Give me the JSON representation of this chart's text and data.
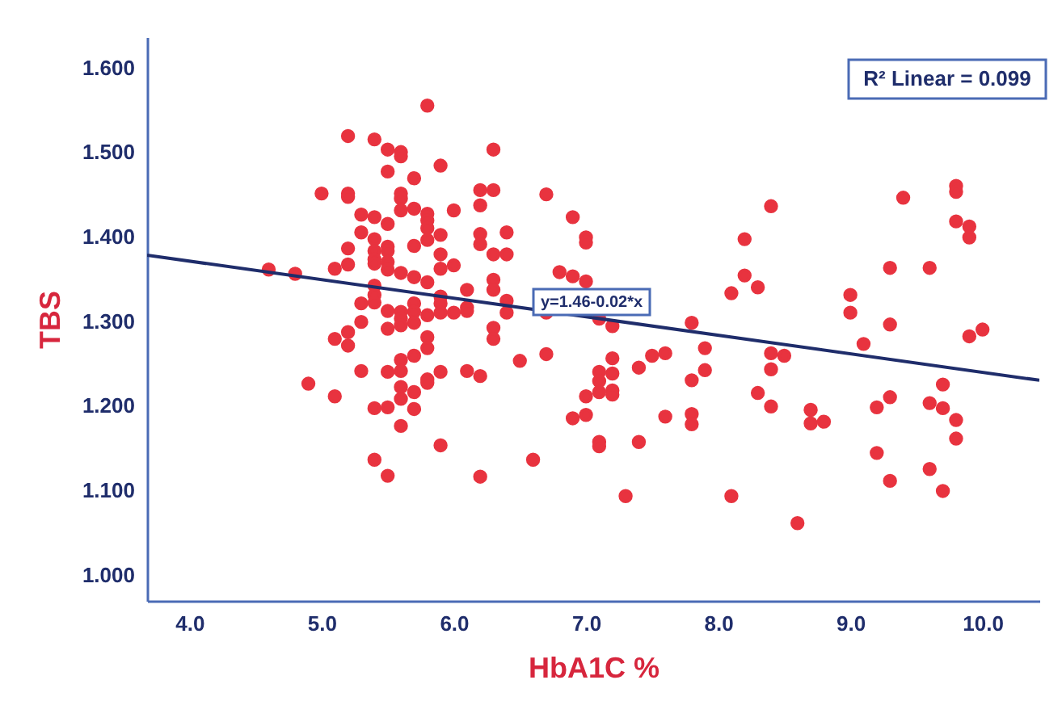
{
  "chart_data": {
    "type": "scatter",
    "xlabel": "HbA1C %",
    "ylabel": "TBS",
    "xlim": [
      3.68,
      10.43
    ],
    "ylim": [
      0.969,
      1.636
    ],
    "xticks": [
      {
        "value": 4,
        "label": "4.0"
      },
      {
        "value": 5,
        "label": "5.0"
      },
      {
        "value": 6,
        "label": "6.0"
      },
      {
        "value": 7,
        "label": "7.0"
      },
      {
        "value": 8,
        "label": "8.0"
      },
      {
        "value": 9,
        "label": "9.0"
      },
      {
        "value": 10,
        "label": "10.0"
      }
    ],
    "yticks": [
      {
        "value": 1.0,
        "label": "1.000"
      },
      {
        "value": 1.1,
        "label": "1.100"
      },
      {
        "value": 1.2,
        "label": "1.200"
      },
      {
        "value": 1.3,
        "label": "1.300"
      },
      {
        "value": 1.4,
        "label": "1.400"
      },
      {
        "value": 1.5,
        "label": "1.500"
      },
      {
        "value": 1.6,
        "label": "1.600"
      }
    ],
    "marker": "circle",
    "annotations": [
      "R² Linear = 0.099",
      "y=1.46-0.02*x"
    ],
    "series": [
      {
        "type": "scatter",
        "color": "#e8333f",
        "x": [
          5.8,
          5.2,
          5.4,
          5.5,
          5.6,
          5.6,
          6.3,
          5.9,
          5.5,
          5.7,
          5.0,
          5.2,
          5.2,
          5.6,
          5.6,
          5.6,
          5.7,
          5.8,
          5.8,
          5.8,
          5.8,
          6.0,
          6.2,
          6.2,
          6.3,
          6.7,
          5.3,
          5.3,
          5.4,
          5.4,
          5.4,
          5.4,
          5.4,
          5.5,
          5.5,
          5.5,
          5.5,
          5.5,
          5.2,
          5.2,
          5.1,
          4.6,
          4.8,
          5.7,
          5.7,
          5.6,
          5.9,
          5.9,
          5.9,
          6.0,
          6.2,
          6.2,
          6.3,
          6.3,
          6.4,
          6.4,
          5.8,
          5.4,
          5.4,
          5.4,
          5.3,
          5.7,
          5.7,
          5.7,
          5.6,
          5.6,
          5.6,
          5.5,
          5.5,
          5.3,
          5.9,
          5.9,
          5.9,
          6.1,
          6.1,
          6.1,
          6.0,
          6.3,
          6.4,
          6.4,
          5.8,
          5.2,
          5.2,
          5.1,
          5.8,
          5.8,
          6.3,
          6.3,
          5.6,
          5.7,
          6.5,
          6.7,
          5.3,
          5.5,
          5.6,
          5.8,
          5.8,
          5.9,
          6.1,
          6.2,
          4.9,
          5.1,
          5.6,
          5.6,
          5.7,
          5.4,
          5.5,
          5.7,
          5.6,
          5.9,
          5.4,
          5.5,
          6.2,
          6.6,
          6.9,
          7.0,
          7.0,
          6.8,
          6.9,
          7.0,
          6.7,
          7.1,
          7.2,
          7.8,
          7.9,
          8.1,
          8.2,
          8.2,
          8.3,
          8.4,
          9.0,
          9.0,
          9.1,
          9.3,
          9.3,
          9.4,
          9.6,
          9.8,
          9.8,
          9.8,
          9.9,
          9.9,
          9.9,
          10.0,
          7.1,
          7.1,
          7.1,
          7.0,
          7.2,
          7.2,
          7.2,
          7.2,
          7.4,
          7.5,
          7.6,
          7.8,
          7.9,
          8.4,
          8.4,
          8.5,
          8.3,
          8.4,
          6.9,
          7.0,
          7.6,
          7.8,
          7.8,
          8.7,
          8.7,
          8.8,
          9.2,
          9.3,
          9.6,
          9.7,
          9.7,
          9.8,
          9.8,
          7.1,
          7.1,
          7.4,
          9.2,
          9.6,
          9.3,
          9.7,
          7.3,
          8.1,
          8.6
        ],
        "values": [
          1.555,
          1.519,
          1.515,
          1.503,
          1.5,
          1.495,
          1.503,
          1.484,
          1.477,
          1.469,
          1.451,
          1.451,
          1.447,
          1.451,
          1.445,
          1.431,
          1.433,
          1.427,
          1.419,
          1.41,
          1.396,
          1.431,
          1.455,
          1.437,
          1.455,
          1.45,
          1.426,
          1.405,
          1.423,
          1.397,
          1.383,
          1.373,
          1.368,
          1.415,
          1.388,
          1.383,
          1.37,
          1.361,
          1.386,
          1.367,
          1.362,
          1.361,
          1.356,
          1.389,
          1.352,
          1.357,
          1.402,
          1.379,
          1.362,
          1.366,
          1.403,
          1.391,
          1.379,
          1.349,
          1.405,
          1.379,
          1.346,
          1.342,
          1.331,
          1.322,
          1.321,
          1.321,
          1.311,
          1.298,
          1.311,
          1.303,
          1.295,
          1.312,
          1.291,
          1.299,
          1.329,
          1.321,
          1.31,
          1.337,
          1.316,
          1.312,
          1.31,
          1.337,
          1.324,
          1.31,
          1.307,
          1.287,
          1.271,
          1.279,
          1.281,
          1.268,
          1.292,
          1.279,
          1.254,
          1.259,
          1.253,
          1.261,
          1.241,
          1.24,
          1.241,
          1.231,
          1.227,
          1.24,
          1.241,
          1.235,
          1.226,
          1.211,
          1.222,
          1.208,
          1.216,
          1.197,
          1.198,
          1.196,
          1.176,
          1.153,
          1.136,
          1.117,
          1.116,
          1.136,
          1.423,
          1.399,
          1.393,
          1.358,
          1.353,
          1.347,
          1.31,
          1.303,
          1.294,
          1.298,
          1.268,
          1.333,
          1.397,
          1.354,
          1.34,
          1.436,
          1.331,
          1.31,
          1.273,
          1.363,
          1.296,
          1.446,
          1.363,
          1.46,
          1.453,
          1.418,
          1.412,
          1.399,
          1.282,
          1.29,
          1.24,
          1.229,
          1.216,
          1.211,
          1.256,
          1.238,
          1.218,
          1.213,
          1.245,
          1.259,
          1.262,
          1.23,
          1.242,
          1.262,
          1.243,
          1.259,
          1.215,
          1.199,
          1.185,
          1.189,
          1.187,
          1.19,
          1.178,
          1.195,
          1.179,
          1.181,
          1.198,
          1.21,
          1.203,
          1.225,
          1.197,
          1.183,
          1.161,
          1.157,
          1.152,
          1.157,
          1.144,
          1.125,
          1.111,
          1.099,
          1.093,
          1.093,
          1.061
        ]
      },
      {
        "type": "line",
        "marker": "none",
        "color": "#1f2d6b",
        "x": [
          3.68,
          10.43
        ],
        "values": [
          1.378,
          1.23
        ]
      }
    ]
  }
}
